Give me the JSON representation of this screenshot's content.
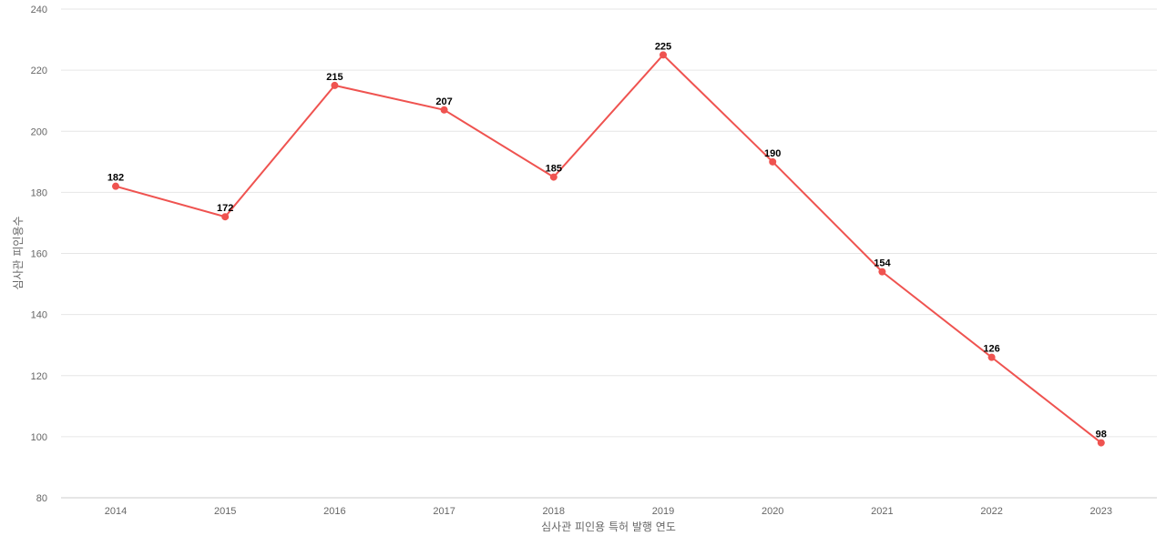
{
  "chart_data": {
    "type": "line",
    "title": "",
    "xlabel": "심사관 피인용 특허 발행 연도",
    "ylabel": "심사관 피인용수",
    "categories": [
      "2014",
      "2015",
      "2016",
      "2017",
      "2018",
      "2019",
      "2020",
      "2021",
      "2022",
      "2023"
    ],
    "series": [
      {
        "values": [
          182,
          172,
          215,
          207,
          185,
          225,
          190,
          154,
          126,
          98
        ],
        "color": "#ef5350"
      }
    ],
    "ylim": [
      80,
      240
    ],
    "yticks": [
      80,
      100,
      120,
      140,
      160,
      180,
      200,
      220,
      240
    ],
    "grid": true,
    "legend": "none",
    "data_labels": true
  }
}
